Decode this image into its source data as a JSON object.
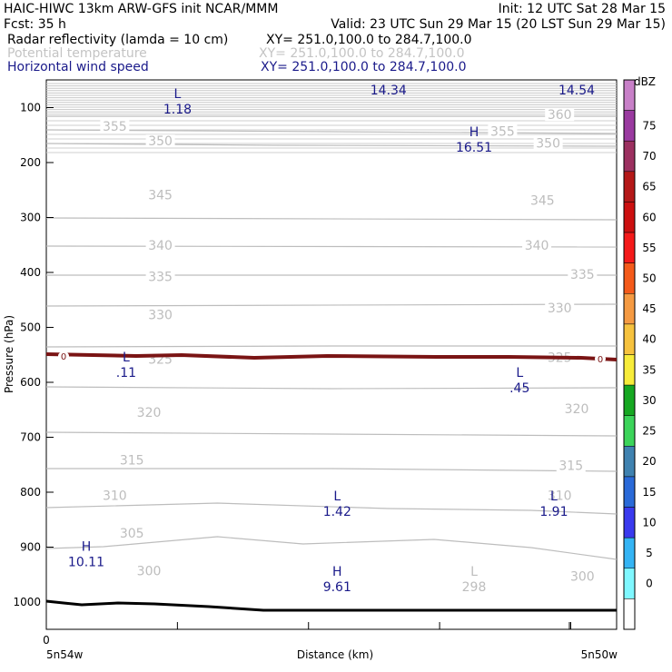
{
  "header": {
    "line1_left": "HAIC-HIWC 13km ARW-GFS init   NCAR/MMM",
    "line1_right": "Init: 12 UTC Sat 28 Mar 15",
    "line2_left": "Fcst:   35 h",
    "line2_right": "Valid: 23 UTC Sun 29 Mar 15 (20 LST Sun 29 Mar 15)",
    "fields": [
      {
        "name": "Radar reflectivity (lamda = 10 cm)",
        "xy": "XY= 251.0,100.0 to 284.7,100.0",
        "color": "#000000"
      },
      {
        "name": "Potential temperature",
        "xy": "XY= 251.0,100.0 to 284.7,100.0",
        "color": "#c4c4c4"
      },
      {
        "name": "Horizontal wind speed",
        "xy": "XY= 251.0,100.0 to 284.7,100.0",
        "color": "#1a1a8a"
      }
    ]
  },
  "chart_data": {
    "type": "cross-section",
    "ylabel": "Pressure (hPa)",
    "xlabel": "Distance (km)",
    "x_tick_labels": [
      "0"
    ],
    "x_left_label": "5n54w",
    "x_right_label": "5n50w",
    "y_ticks": [
      100,
      200,
      300,
      400,
      500,
      600,
      700,
      800,
      900,
      1000
    ],
    "colorbar": {
      "unit": "dBZ",
      "levels": [
        0,
        5,
        10,
        15,
        20,
        25,
        30,
        35,
        40,
        45,
        50,
        55,
        60,
        65,
        70,
        75
      ],
      "colors": [
        "#ffffff",
        "#7ff7ff",
        "#34b4f4",
        "#3a3aee",
        "#2a6ad8",
        "#3f82b0",
        "#3cd45a",
        "#16a822",
        "#f7ec3a",
        "#f6c23e",
        "#f59a42",
        "#f45a1a",
        "#f41a1a",
        "#cc1010",
        "#b41818",
        "#9c3060",
        "#9a3aa0",
        "#c880c8"
      ]
    },
    "theta_contours": [
      {
        "value": "300",
        "label_positions": [
          [
            0.18,
            0.898
          ],
          [
            0.94,
            0.908
          ]
        ]
      },
      {
        "value": "305",
        "label_positions": [
          [
            0.15,
            0.83
          ]
        ]
      },
      {
        "value": "310",
        "label_positions": [
          [
            0.12,
            0.761
          ],
          [
            0.9,
            0.761
          ]
        ]
      },
      {
        "value": "315",
        "label_positions": [
          [
            0.15,
            0.697
          ],
          [
            0.92,
            0.707
          ]
        ]
      },
      {
        "value": "320",
        "label_positions": [
          [
            0.18,
            0.61
          ],
          [
            0.93,
            0.603
          ]
        ]
      },
      {
        "value": "325",
        "label_positions": [
          [
            0.2,
            0.513
          ],
          [
            0.9,
            0.51
          ]
        ]
      },
      {
        "value": "330",
        "label_positions": [
          [
            0.2,
            0.432
          ],
          [
            0.9,
            0.42
          ]
        ]
      },
      {
        "value": "335",
        "label_positions": [
          [
            0.2,
            0.363
          ],
          [
            0.94,
            0.359
          ]
        ]
      },
      {
        "value": "340",
        "label_positions": [
          [
            0.2,
            0.306
          ],
          [
            0.86,
            0.306
          ]
        ]
      },
      {
        "value": "345",
        "label_positions": [
          [
            0.2,
            0.214
          ],
          [
            0.87,
            0.224
          ]
        ]
      },
      {
        "value": "350",
        "label_positions": [
          [
            0.2,
            0.116
          ],
          [
            0.88,
            0.12
          ]
        ]
      },
      {
        "value": "355",
        "label_positions": [
          [
            0.12,
            0.089
          ],
          [
            0.8,
            0.098
          ]
        ]
      },
      {
        "value": "360",
        "label_positions": [
          [
            0.9,
            0.068
          ]
        ]
      }
    ],
    "wind_extrema": [
      {
        "type": "L",
        "value": "1.18",
        "x": 0.23,
        "p": 111
      },
      {
        "type": "H",
        "value": "16.51",
        "x": 0.75,
        "p": 180
      },
      {
        "type": "L",
        "value": ".11",
        "x": 0.14,
        "p": 590
      },
      {
        "type": "L",
        "value": ".45",
        "x": 0.83,
        "p": 618
      },
      {
        "type": "L",
        "value": "1.42",
        "x": 0.51,
        "p": 843
      },
      {
        "type": "L",
        "value": "1.91",
        "x": 0.89,
        "p": 843
      },
      {
        "type": "H",
        "value": "10.11",
        "x": 0.07,
        "p": 935
      },
      {
        "type": "H",
        "value": "9.61",
        "x": 0.51,
        "p": 980
      }
    ],
    "theta_extrema": [
      {
        "type": "L",
        "value": "298",
        "x": 0.75,
        "p": 980
      }
    ],
    "top_values": [
      {
        "value": "14.34",
        "x": 0.6
      },
      {
        "value": "14.54",
        "x": 0.93
      }
    ],
    "freezing_level": {
      "label_left": "0",
      "label_right": "0"
    }
  }
}
